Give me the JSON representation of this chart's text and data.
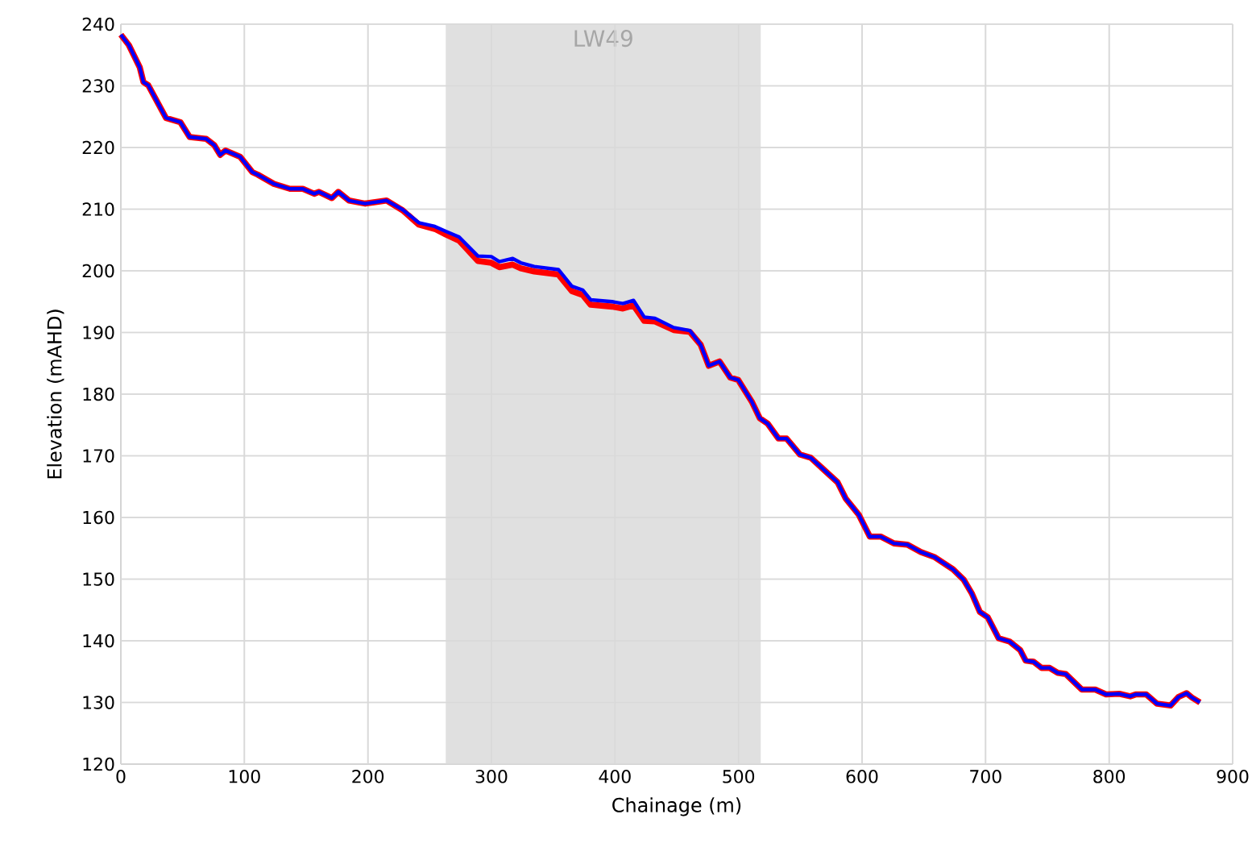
{
  "chart_data": {
    "type": "line",
    "xlabel": "Chainage (m)",
    "ylabel": "Elevation (mAHD)",
    "x": [
      0,
      6.5,
      15.3,
      18.3,
      22.2,
      36.5,
      48.2,
      55.7,
      69.1,
      75.6,
      80.4,
      84.7,
      96.5,
      106.5,
      110.8,
      123.9,
      136.9,
      147.3,
      156.5,
      160.4,
      170.8,
      176.0,
      184.7,
      197.8,
      215.1,
      228.2,
      241.2,
      254.2,
      263.0,
      273.8,
      289.0,
      299.9,
      306.4,
      317.2,
      323.7,
      334.6,
      354.2,
      365.1,
      373.8,
      380.3,
      397.7,
      406.4,
      415.0,
      423.7,
      432.4,
      447.5,
      460.6,
      469.4,
      475.9,
      484.6,
      493.3,
      499.8,
      510.7,
      517.2,
      523.7,
      532.3,
      538.9,
      549.8,
      558.4,
      580.2,
      586.7,
      597.5,
      606.3,
      615.0,
      625.8,
      636.6,
      647.6,
      658.4,
      673.6,
      682.3,
      688.8,
      695.3,
      701.8,
      710.6,
      719.3,
      728.0,
      732.4,
      738.9,
      745.4,
      751.9,
      758.4,
      764.9,
      777.9,
      788.8,
      797.5,
      808.3,
      817.1,
      821.4,
      830.1,
      838.8,
      849.7,
      856.2,
      862.7,
      867.0,
      873.5
    ],
    "series": [
      {
        "color": "#ff0000",
        "values": [
          238.3,
          236.6,
          233.0,
          230.6,
          230.1,
          224.8,
          224.1,
          221.7,
          221.4,
          220.4,
          218.8,
          219.5,
          218.5,
          216.0,
          215.6,
          214.1,
          213.3,
          213.3,
          212.5,
          212.8,
          211.8,
          212.8,
          211.4,
          210.9,
          211.4,
          209.8,
          207.5,
          206.8,
          205.9,
          204.9,
          201.6,
          201.3,
          200.6,
          201.0,
          200.4,
          199.9,
          199.4,
          196.7,
          196.1,
          194.5,
          194.2,
          193.9,
          194.4,
          191.9,
          191.8,
          190.4,
          190.1,
          188.0,
          184.6,
          185.3,
          182.7,
          182.3,
          178.8,
          176.1,
          175.2,
          172.8,
          172.8,
          170.2,
          169.7,
          165.7,
          163.1,
          160.4,
          156.9,
          156.9,
          155.8,
          155.6,
          154.4,
          153.6,
          151.6,
          149.9,
          147.7,
          144.7,
          143.8,
          140.4,
          139.9,
          138.5,
          136.8,
          136.6,
          135.6,
          135.6,
          134.8,
          134.6,
          132.1,
          132.1,
          131.3,
          131.4,
          131.0,
          131.3,
          131.3,
          129.8,
          129.5,
          130.9,
          131.5,
          130.8,
          130.0
        ]
      },
      {
        "color": "#0000ff",
        "values": [
          238.3,
          236.6,
          233.0,
          230.6,
          230.1,
          224.8,
          224.1,
          221.7,
          221.4,
          220.4,
          218.8,
          219.5,
          218.5,
          216.0,
          215.6,
          214.1,
          213.3,
          213.3,
          212.5,
          212.8,
          211.8,
          212.8,
          211.4,
          210.9,
          211.4,
          209.9,
          207.8,
          207.2,
          206.4,
          205.5,
          202.4,
          202.3,
          201.5,
          202.0,
          201.3,
          200.7,
          200.2,
          197.5,
          196.9,
          195.3,
          195.0,
          194.7,
          195.2,
          192.5,
          192.3,
          190.8,
          190.3,
          188.0,
          184.6,
          185.3,
          182.7,
          182.3,
          178.8,
          176.1,
          175.2,
          172.8,
          172.8,
          170.2,
          169.7,
          165.7,
          163.1,
          160.4,
          156.9,
          156.9,
          155.8,
          155.6,
          154.4,
          153.6,
          151.6,
          149.9,
          147.7,
          144.7,
          143.8,
          140.4,
          139.9,
          138.5,
          136.8,
          136.6,
          135.6,
          135.6,
          134.8,
          134.6,
          132.1,
          132.1,
          131.3,
          131.4,
          131.0,
          131.3,
          131.3,
          129.8,
          129.5,
          130.9,
          131.5,
          130.8,
          130.0
        ]
      }
    ],
    "xlim": [
      0,
      900
    ],
    "ylim": [
      120,
      240
    ],
    "xticks": [
      0,
      100,
      200,
      300,
      400,
      500,
      600,
      700,
      800,
      900
    ],
    "yticks": [
      120,
      130,
      140,
      150,
      160,
      170,
      180,
      190,
      200,
      210,
      220,
      230,
      240
    ],
    "bands": [
      {
        "axis": "x",
        "from": 263,
        "to": 518,
        "label": "LW49",
        "color": "#e0e0e0"
      }
    ],
    "grid": true,
    "legend": false,
    "marker": "none",
    "line_style": "solid"
  }
}
